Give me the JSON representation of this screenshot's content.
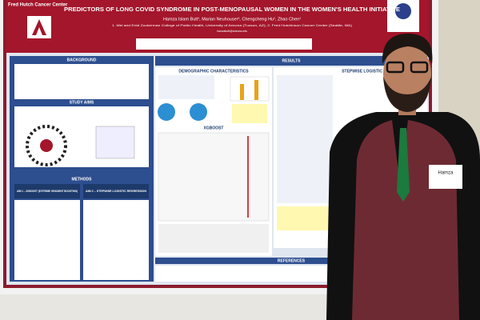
{
  "poster": {
    "logo_text": "Fred Hutch Cancer Center",
    "title": "PREDICTORS OF LONG COVID SYNDROME IN POST-MENOPAUSAL WOMEN IN THE WOMEN'S HEALTH INITIATIVE",
    "authors": "Hamza Islam Butt¹, Marian Neuhouser², Chengcheng Hu¹, Zhao Chen¹",
    "affiliations": "1. Mel and Enid Zuckerman College of Public Health, University of Arizona (Tucson, AZ); 2. Fred Hutchinson Cancer Center (Seattle, WA)",
    "email": "hamzabutt@arizona.edu",
    "sections": {
      "background": "BACKGROUND",
      "study_aims": "STUDY AIMS",
      "methods": "METHODS",
      "aim1": "AIM 1 – XGBOOST (EXTREME GRADIENT BOOSTING)",
      "aim2": "AIM 2 – STEPWISE LOGISTIC REGRESSION",
      "results": "RESULTS",
      "demographics": "DEMOGRAPHIC CHARACTERISTICS",
      "xgboost": "XGBOOST",
      "stepwise": "STEPWISE LOGISTIC REGRESSION",
      "references": "REFERENCES"
    }
  },
  "name_tag": "Hamza"
}
